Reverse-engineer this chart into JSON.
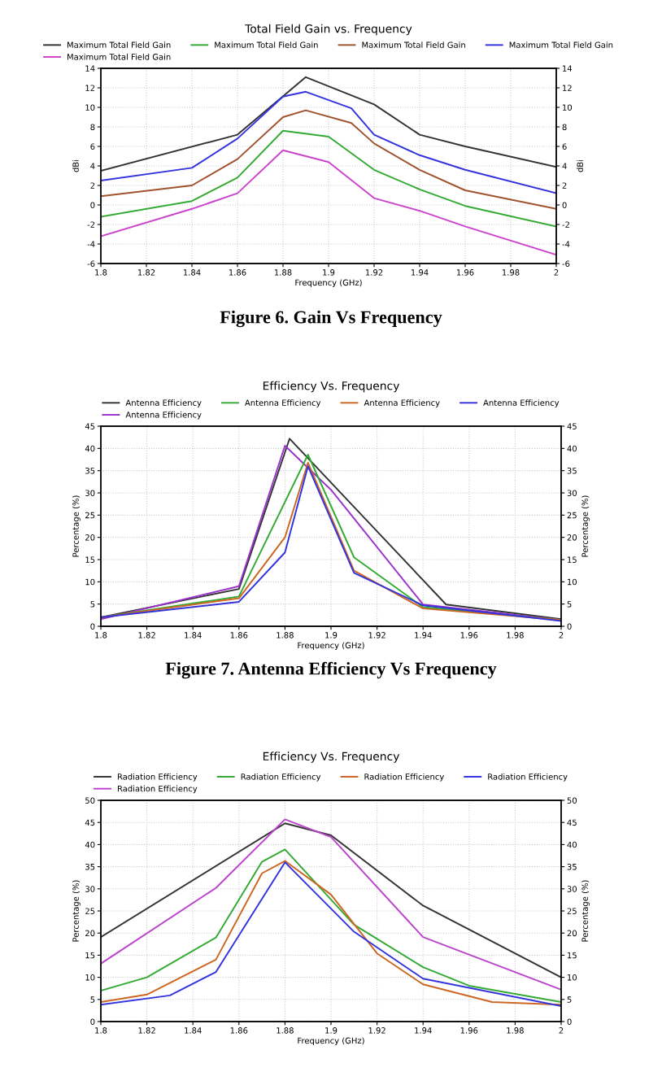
{
  "chart_data": [
    {
      "type": "line",
      "title": "Total Field Gain vs. Frequency",
      "xlabel": "Frequency (GHz)",
      "ylabel": "dBi",
      "y2label": "dBi",
      "annotations": [
        "Figure 6. Gain Vs Frequency"
      ],
      "xlim": [
        1.8,
        2
      ],
      "xticks": [
        1.8,
        1.82,
        1.84,
        1.86,
        1.88,
        1.9,
        1.92,
        1.94,
        1.96,
        1.98,
        2
      ],
      "ylim": [
        -6,
        14
      ],
      "yticks": [
        -6,
        -4,
        -2,
        0,
        2,
        4,
        6,
        8,
        10,
        12,
        14
      ],
      "y2lim": [
        -6,
        14
      ],
      "y2ticks": [
        -6,
        -4,
        -2,
        0,
        2,
        4,
        6,
        8,
        10,
        12,
        14
      ],
      "grid": true,
      "legend": "top",
      "series": [
        {
          "name": "Maximum Total Field Gain",
          "color": "#333333",
          "x": [
            1.8,
            1.86,
            1.89,
            1.92,
            1.94,
            1.96,
            2
          ],
          "values": [
            3.5,
            7.2,
            13.1,
            10.3,
            7.2,
            6.0,
            3.9
          ]
        },
        {
          "name": "Maximum Total Field Gain",
          "color": "#cc44cc",
          "x": [
            1.8,
            1.84,
            1.86,
            1.88,
            1.9,
            1.92,
            1.94,
            1.96,
            2
          ],
          "values": [
            -3.2,
            -0.4,
            1.2,
            5.6,
            4.4,
            0.7,
            -0.6,
            -2.2,
            -5.1
          ]
        },
        {
          "name": "Maximum Total Field Gain",
          "color": "#33aa33",
          "x": [
            1.8,
            1.84,
            1.86,
            1.88,
            1.9,
            1.92,
            1.94,
            1.96,
            2
          ],
          "values": [
            -1.2,
            0.4,
            2.8,
            7.6,
            7.0,
            3.6,
            1.6,
            -0.1,
            -2.2
          ]
        },
        {
          "name": "Maximum Total Field Gain",
          "color": "#a0522d",
          "x": [
            1.8,
            1.84,
            1.86,
            1.88,
            1.89,
            1.91,
            1.92,
            1.94,
            1.96,
            2
          ],
          "values": [
            0.9,
            2.0,
            4.7,
            9.0,
            9.7,
            8.4,
            6.3,
            3.6,
            1.5,
            -0.4
          ]
        },
        {
          "name": "Maximum Total Field Gain",
          "color": "#3333dd",
          "x": [
            1.8,
            1.84,
            1.86,
            1.88,
            1.89,
            1.91,
            1.92,
            1.94,
            1.96,
            2
          ],
          "values": [
            2.5,
            3.8,
            6.8,
            11.1,
            11.6,
            9.9,
            7.2,
            5.1,
            3.6,
            1.2
          ]
        }
      ]
    },
    {
      "type": "line",
      "title": "Efficiency Vs. Frequency",
      "xlabel": "Frequency (GHz)",
      "ylabel": "Percentage (%)",
      "y2label": "Percentage (%)",
      "annotations": [
        "Figure 7. Antenna Efficiency Vs Frequency"
      ],
      "xlim": [
        1.8,
        2
      ],
      "xticks": [
        1.8,
        1.82,
        1.84,
        1.86,
        1.88,
        1.9,
        1.92,
        1.94,
        1.96,
        1.98,
        2
      ],
      "ylim": [
        0,
        45
      ],
      "yticks": [
        0,
        5,
        10,
        15,
        20,
        25,
        30,
        35,
        40,
        45
      ],
      "y2lim": [
        0,
        45
      ],
      "y2ticks": [
        0,
        5,
        10,
        15,
        20,
        25,
        30,
        35,
        40,
        45
      ],
      "grid": true,
      "legend": "top",
      "series": [
        {
          "name": "Antenna Efficiency",
          "color": "#333333",
          "x": [
            1.8,
            1.86,
            1.882,
            1.95,
            2
          ],
          "values": [
            2,
            8.4,
            42.2,
            4.9,
            1.6
          ]
        },
        {
          "name": "Antenna Efficiency",
          "color": "#9933cc",
          "x": [
            1.8,
            1.86,
            1.88,
            1.9,
            1.94,
            2
          ],
          "values": [
            1.6,
            9,
            40.6,
            30.7,
            4.9,
            1.4
          ]
        },
        {
          "name": "Antenna Efficiency",
          "color": "#33aa33",
          "x": [
            1.8,
            1.86,
            1.89,
            1.91,
            1.94,
            2
          ],
          "values": [
            2,
            6.7,
            38.6,
            15.5,
            4.3,
            1.4
          ]
        },
        {
          "name": "Antenna Efficiency",
          "color": "#cc6622",
          "x": [
            1.8,
            1.86,
            1.88,
            1.89,
            1.91,
            1.94,
            2
          ],
          "values": [
            2,
            6.3,
            20,
            36.8,
            12.5,
            4,
            1.4
          ]
        },
        {
          "name": "Antenna Efficiency",
          "color": "#3333dd",
          "x": [
            1.8,
            1.86,
            1.88,
            1.89,
            1.91,
            1.94,
            2
          ],
          "values": [
            2,
            5.5,
            16.6,
            36,
            12,
            4.7,
            1.2
          ]
        }
      ]
    },
    {
      "type": "line",
      "title": "Efficiency Vs. Frequency",
      "xlabel": "Frequency (GHz)",
      "ylabel": "Percentage (%)",
      "y2label": "Percentage (%)",
      "xlim": [
        1.8,
        2
      ],
      "xticks": [
        1.8,
        1.82,
        1.84,
        1.86,
        1.88,
        1.9,
        1.92,
        1.94,
        1.96,
        1.98,
        2
      ],
      "ylim": [
        0,
        50
      ],
      "yticks": [
        0,
        5,
        10,
        15,
        20,
        25,
        30,
        35,
        40,
        45,
        50
      ],
      "y2lim": [
        0,
        50
      ],
      "y2ticks": [
        0,
        5,
        10,
        15,
        20,
        25,
        30,
        35,
        40,
        45,
        50
      ],
      "grid": true,
      "legend": "top",
      "series": [
        {
          "name": "Radiation Efficiency",
          "color": "#333333",
          "x": [
            1.8,
            1.88,
            1.9,
            1.94,
            2
          ],
          "values": [
            19.1,
            44.8,
            42.1,
            26.2,
            10
          ]
        },
        {
          "name": "Radiation Efficiency",
          "color": "#bb44cc",
          "x": [
            1.8,
            1.85,
            1.88,
            1.9,
            1.94,
            2
          ],
          "values": [
            13.1,
            30.2,
            45.7,
            41.7,
            19.1,
            7.2
          ]
        },
        {
          "name": "Radiation Efficiency",
          "color": "#33aa33",
          "x": [
            1.8,
            1.82,
            1.85,
            1.87,
            1.88,
            1.91,
            1.94,
            1.96,
            2
          ],
          "values": [
            7,
            10,
            19,
            36.1,
            38.9,
            21.9,
            12.3,
            8.1,
            4.4
          ]
        },
        {
          "name": "Radiation Efficiency",
          "color": "#cc6622",
          "x": [
            1.8,
            1.82,
            1.85,
            1.87,
            1.88,
            1.9,
            1.92,
            1.94,
            1.97,
            2
          ],
          "values": [
            4.4,
            6.1,
            14,
            33.5,
            36.3,
            28.7,
            15.4,
            8.4,
            4.4,
            3.8
          ]
        },
        {
          "name": "Radiation Efficiency",
          "color": "#3333dd",
          "x": [
            1.8,
            1.83,
            1.85,
            1.88,
            1.91,
            1.94,
            2
          ],
          "values": [
            3.8,
            5.9,
            11.2,
            36,
            20.3,
            9.7,
            3.5
          ]
        }
      ]
    }
  ]
}
